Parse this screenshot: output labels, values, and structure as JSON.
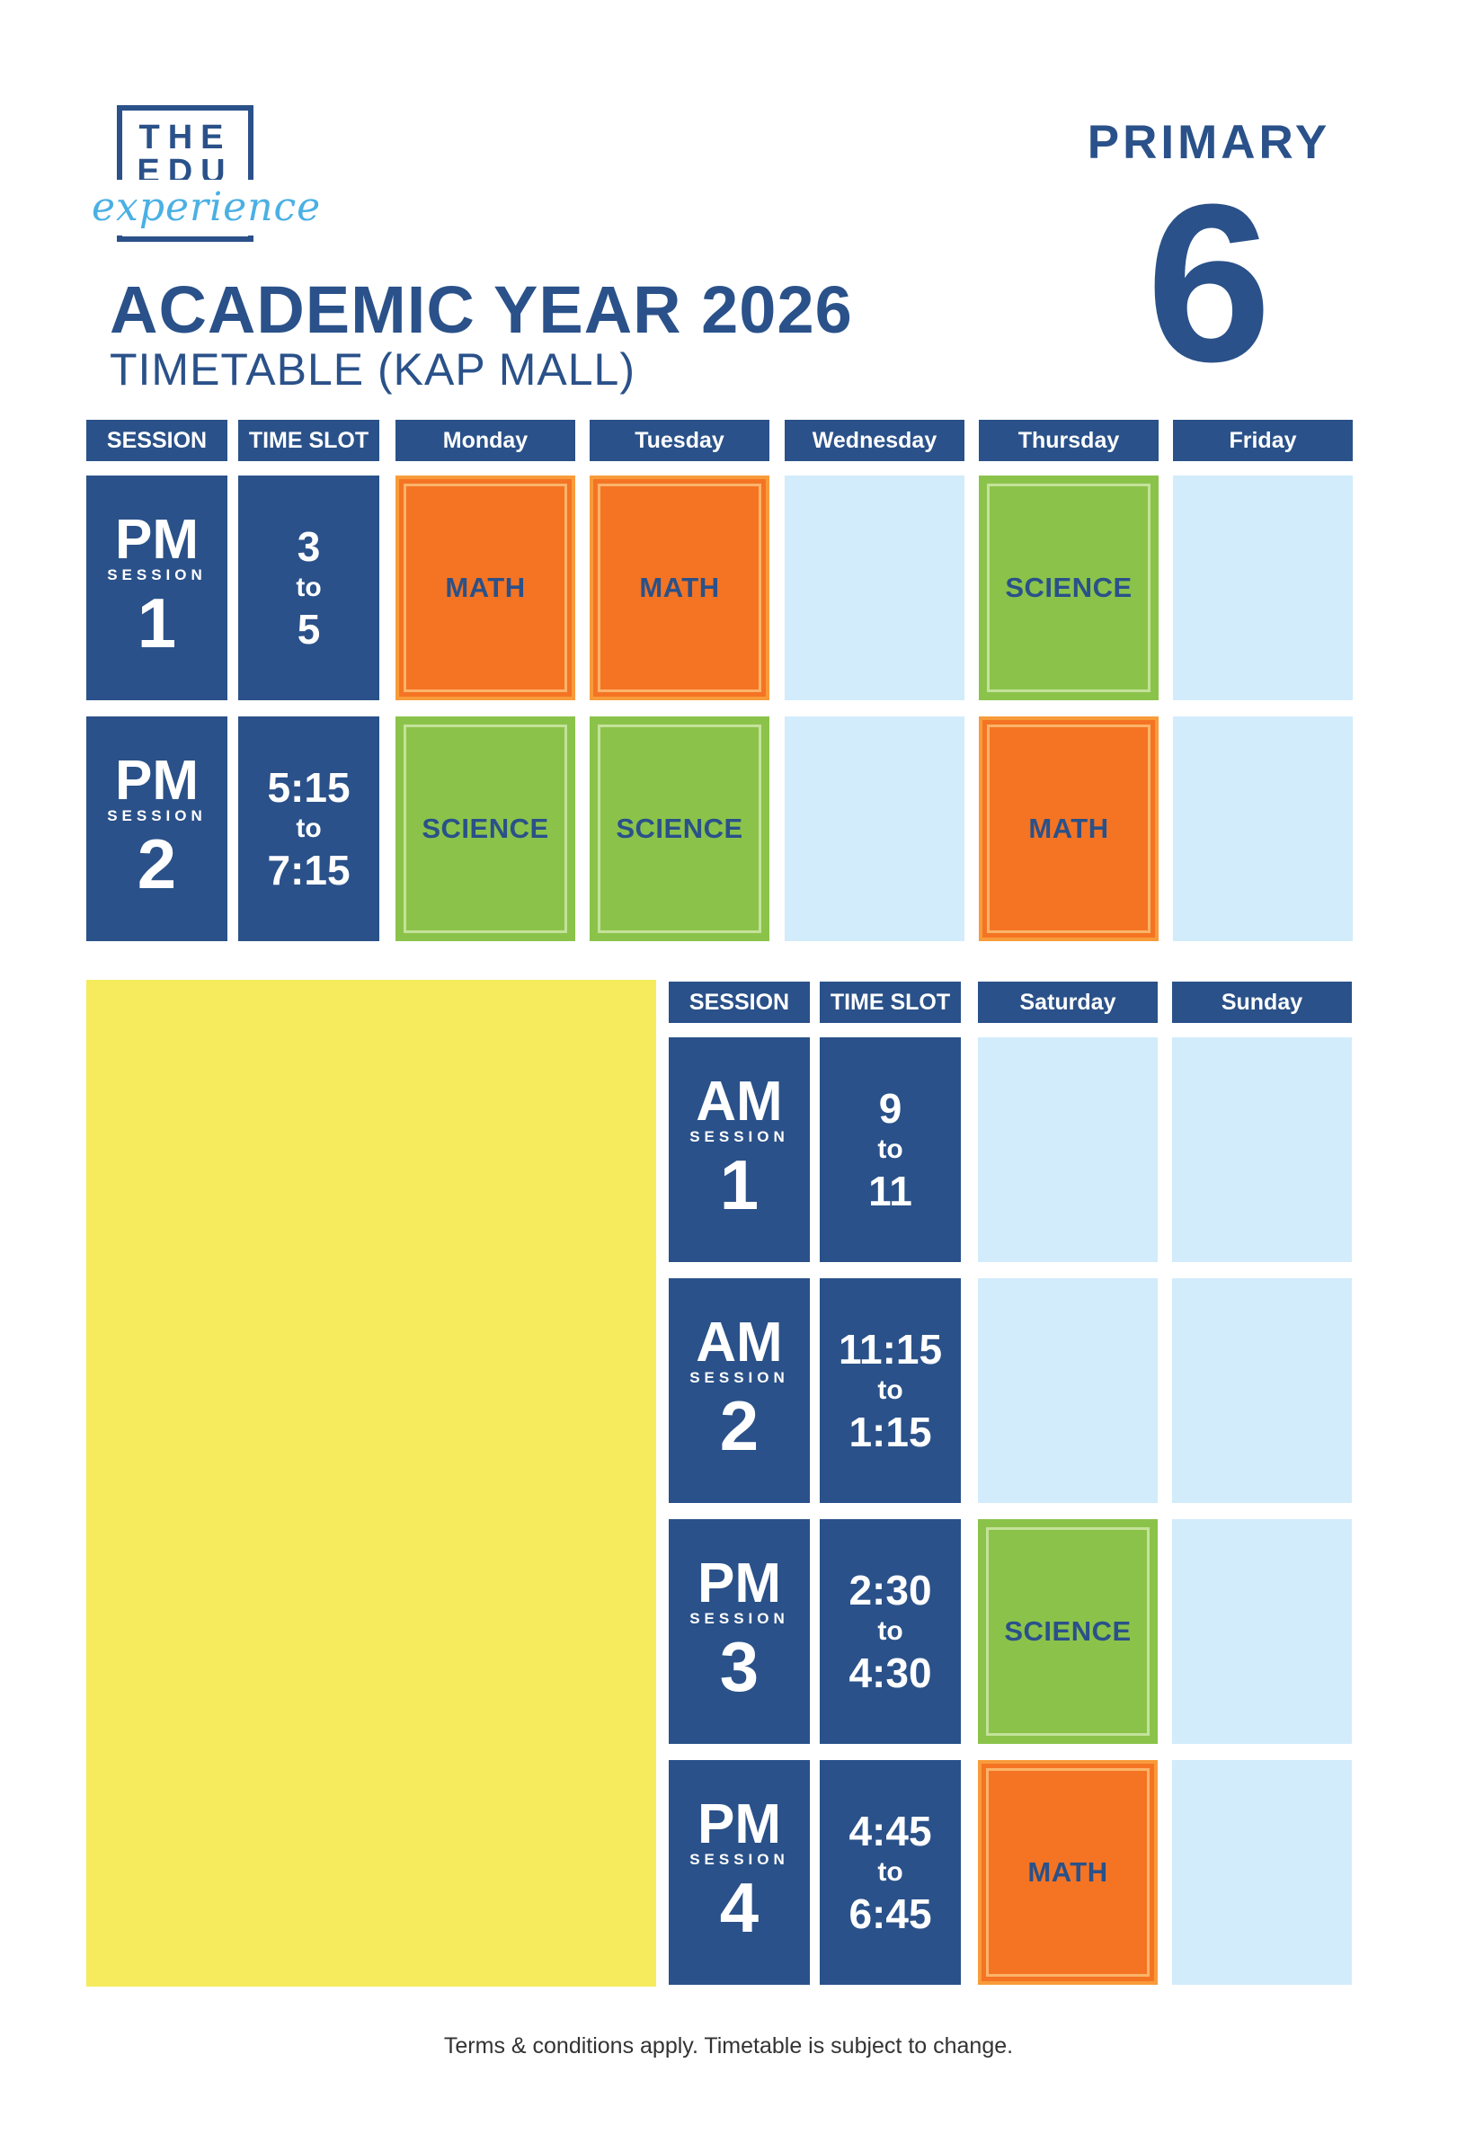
{
  "logo": {
    "line1": "THE",
    "line2": "EDU",
    "script": "experience"
  },
  "title": "ACADEMIC YEAR 2026",
  "subtitle": "TIMETABLE (KAP MALL)",
  "level": {
    "label": "PRIMARY",
    "number": "6"
  },
  "weekday_table": {
    "headers": [
      "SESSION",
      "TIME SLOT",
      "Monday",
      "Tuesday",
      "Wednesday",
      "Thursday",
      "Friday"
    ],
    "rows": [
      {
        "session": {
          "prefix": "PM",
          "word": "SESSION",
          "number": "1"
        },
        "time": {
          "from": "3",
          "to_word": "to",
          "to": "5"
        },
        "cells": [
          "MATH",
          "MATH",
          "",
          "SCIENCE",
          ""
        ]
      },
      {
        "session": {
          "prefix": "PM",
          "word": "SESSION",
          "number": "2"
        },
        "time": {
          "from": "5:15",
          "to_word": "to",
          "to": "7:15"
        },
        "cells": [
          "SCIENCE",
          "SCIENCE",
          "",
          "MATH",
          ""
        ]
      }
    ]
  },
  "weekend_table": {
    "headers": [
      "SESSION",
      "TIME SLOT",
      "Saturday",
      "Sunday"
    ],
    "rows": [
      {
        "session": {
          "prefix": "AM",
          "word": "SESSION",
          "number": "1"
        },
        "time": {
          "from": "9",
          "to_word": "to",
          "to": "11"
        },
        "cells": [
          "",
          ""
        ]
      },
      {
        "session": {
          "prefix": "AM",
          "word": "SESSION",
          "number": "2"
        },
        "time": {
          "from": "11:15",
          "to_word": "to",
          "to": "1:15"
        },
        "cells": [
          "",
          ""
        ]
      },
      {
        "session": {
          "prefix": "PM",
          "word": "SESSION",
          "number": "3"
        },
        "time": {
          "from": "2:30",
          "to_word": "to",
          "to": "4:30"
        },
        "cells": [
          "SCIENCE",
          ""
        ]
      },
      {
        "session": {
          "prefix": "PM",
          "word": "SESSION",
          "number": "4"
        },
        "time": {
          "from": "4:45",
          "to_word": "to",
          "to": "6:45"
        },
        "cells": [
          "MATH",
          ""
        ]
      }
    ]
  },
  "colors": {
    "navy": "#2a5189",
    "math": "#f47423",
    "science": "#8bc34a",
    "empty": "#d2ecfb",
    "panel": "#f5eb5d"
  },
  "footer": "Terms & conditions apply. Timetable is subject to change."
}
